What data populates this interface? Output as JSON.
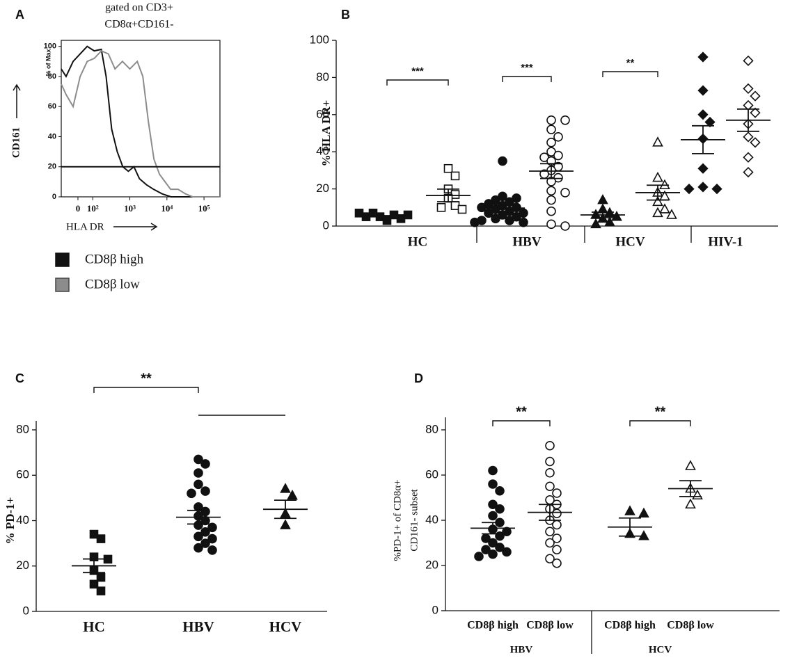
{
  "chart_data": [
    {
      "panel": "A",
      "type": "line",
      "title_lines": [
        "gated on CD3+",
        "CD8α+CD161-"
      ],
      "ylabel": "CD161",
      "ylabel_small": "% of Max",
      "xlabel": "HLA DR",
      "xlim": [
        1.15,
        5.43
      ],
      "ylim": [
        0,
        104
      ],
      "yticks": [
        0,
        20,
        40,
        60,
        80,
        100
      ],
      "xticks": [
        {
          "value": 1.6,
          "label": "0"
        },
        {
          "value": 2,
          "label": "10²"
        },
        {
          "value": 3,
          "label": "10³"
        },
        {
          "value": 4,
          "label": "10⁴"
        },
        {
          "value": 5,
          "label": "10⁵"
        }
      ],
      "gate": 20,
      "series": [
        {
          "name": "CD8β high",
          "color": "#111111",
          "x": [
            1.15,
            1.28,
            1.47,
            1.66,
            1.85,
            2.04,
            2.23,
            2.36,
            2.51,
            2.66,
            2.81,
            2.96,
            3.11,
            3.26,
            3.45,
            3.64,
            3.87,
            4.11,
            5.43
          ],
          "values": [
            85,
            80,
            90,
            95,
            100,
            97,
            98,
            80,
            45,
            30,
            20,
            17,
            20,
            12,
            8,
            5,
            2,
            0,
            0
          ]
        },
        {
          "name": "CD8β low",
          "color": "#8c8c8c",
          "x": [
            1.15,
            1.28,
            1.47,
            1.66,
            1.85,
            2.04,
            2.23,
            2.42,
            2.6,
            2.8,
            3.0,
            3.2,
            3.35,
            3.5,
            3.65,
            3.8,
            3.95,
            4.1,
            4.3,
            4.5,
            4.7,
            5.43
          ],
          "values": [
            75,
            68,
            60,
            80,
            90,
            92,
            97,
            95,
            85,
            90,
            85,
            90,
            80,
            50,
            25,
            15,
            10,
            5,
            5,
            2,
            0,
            0
          ]
        }
      ]
    },
    {
      "panel": "B",
      "type": "dotplot",
      "ylabel": "% HLA DR+",
      "ylim": [
        0,
        100
      ],
      "yticks": [
        0,
        20,
        40,
        60,
        80,
        100
      ],
      "groups": [
        {
          "label": "HC",
          "series": [
            {
              "marker": "square",
              "filled": true,
              "values": [
                3,
                4,
                5,
                5,
                6,
                6,
                7,
                7
              ],
              "mean": 5,
              "sem": 0.6
            },
            {
              "marker": "square",
              "filled": false,
              "values": [
                31,
                27,
                20,
                17,
                15,
                11,
                10,
                9
              ],
              "mean": 16.5,
              "sem": 3.4
            }
          ]
        },
        {
          "label": "HBV",
          "series": [
            {
              "marker": "circle",
              "filled": true,
              "values": [
                35,
                16,
                15,
                14,
                13,
                12,
                11,
                10,
                10,
                9,
                8,
                7,
                7,
                6,
                5,
                4,
                3,
                3,
                2,
                2
              ],
              "mean": 9.7,
              "sem": 2
            },
            {
              "marker": "circle",
              "filled": false,
              "values": [
                57,
                57,
                52,
                48,
                45,
                40,
                38,
                37,
                35,
                32,
                30,
                28,
                26,
                24,
                19,
                18,
                14,
                8,
                1,
                0
              ],
              "mean": 29.6,
              "sem": 4
            }
          ]
        },
        {
          "label": "HCV",
          "series": [
            {
              "marker": "triangle",
              "filled": true,
              "values": [
                14,
                9,
                7,
                6,
                5,
                4,
                2,
                1
              ],
              "mean": 6,
              "sem": 1.5
            },
            {
              "marker": "triangle",
              "filled": false,
              "values": [
                45,
                26,
                22,
                18,
                16,
                13,
                9,
                7,
                6
              ],
              "mean": 18,
              "sem": 4
            }
          ]
        },
        {
          "label": "HIV-1",
          "series": [
            {
              "marker": "diamond",
              "filled": true,
              "values": [
                91,
                73,
                60,
                56,
                47,
                31,
                21,
                20,
                20
              ],
              "mean": 46.5,
              "sem": 7.5
            },
            {
              "marker": "diamond",
              "filled": false,
              "values": [
                89,
                74,
                70,
                65,
                61,
                55,
                48,
                45,
                37,
                29
              ],
              "mean": 57,
              "sem": 6
            }
          ]
        }
      ],
      "brackets": [
        {
          "from": 0,
          "to": 1,
          "label": "***"
        },
        {
          "from": 2,
          "to": 3,
          "label": "***"
        },
        {
          "from": 4,
          "to": 5,
          "label": "**"
        }
      ]
    },
    {
      "panel": "C",
      "type": "dotplot",
      "ylabel": "% PD-1+",
      "ylim": [
        0,
        80
      ],
      "yticks": [
        0,
        20,
        40,
        60,
        80
      ],
      "groups": [
        {
          "label": "HC",
          "series": [
            {
              "marker": "square",
              "filled": true,
              "values": [
                34,
                32,
                24,
                23,
                18,
                15,
                12,
                9
              ],
              "mean": 20.1,
              "sem": 3
            }
          ]
        },
        {
          "label": "HBV",
          "series": [
            {
              "marker": "circle",
              "filled": true,
              "values": [
                67,
                65,
                61,
                56,
                53,
                52,
                46,
                44,
                42,
                40,
                38,
                37,
                35,
                33,
                32,
                30,
                28,
                27
              ],
              "mean": 41.5,
              "sem": 3
            }
          ]
        },
        {
          "label": "HCV",
          "series": [
            {
              "marker": "triangle",
              "filled": true,
              "values": [
                54,
                51,
                43,
                38
              ],
              "mean": 45,
              "sem": 4
            }
          ]
        }
      ],
      "brackets": [
        {
          "from": 0,
          "to": 1,
          "label": "**"
        },
        {
          "from": 1,
          "to": 2
        }
      ]
    },
    {
      "panel": "D",
      "type": "dotplot",
      "ylabel": [
        "%PD-1+ of CD8α+",
        "CD161- subset"
      ],
      "ylim": [
        0,
        80
      ],
      "yticks": [
        0,
        20,
        40,
        60,
        80
      ],
      "groups": [
        {
          "label": "HBV",
          "series": [
            {
              "label": "CD8β high",
              "marker": "circle",
              "filled": true,
              "values": [
                62,
                56,
                53,
                47,
                45,
                42,
                39,
                36,
                35,
                33,
                32,
                30,
                28,
                27,
                26,
                25,
                24
              ],
              "mean": 36.5,
              "sem": 2.5
            },
            {
              "label": "CD8β low",
              "marker": "circle",
              "filled": false,
              "values": [
                73,
                66,
                61,
                55,
                52,
                49,
                47,
                45,
                43,
                40,
                38,
                35,
                32,
                30,
                27,
                23,
                21
              ],
              "mean": 43.5,
              "sem": 3.5
            }
          ]
        },
        {
          "label": "HCV",
          "series": [
            {
              "label": "CD8β high",
              "marker": "triangle",
              "filled": true,
              "values": [
                44,
                43,
                34,
                33
              ],
              "mean": 37,
              "sem": 4
            },
            {
              "label": "CD8β low",
              "marker": "triangle",
              "filled": false,
              "values": [
                64,
                54,
                51,
                47
              ],
              "mean": 54,
              "sem": 3.5
            }
          ]
        }
      ],
      "brackets": [
        {
          "from": 0,
          "to": 1,
          "label": "**"
        },
        {
          "from": 2,
          "to": 3,
          "label": "**"
        }
      ]
    }
  ]
}
